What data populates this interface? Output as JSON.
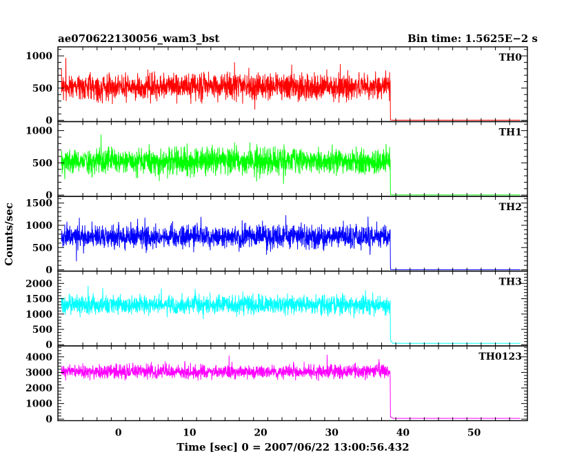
{
  "header": {
    "title": "ae070622130056_wam3_bst",
    "bin_time": "Bin time: 1.5625E−2 s"
  },
  "chart_data": {
    "type": "line",
    "xlabel": "Time [sec] 0 = 2007/06/22 13:00:56.432",
    "ylabel": "Counts/sec",
    "xlim": [
      -8.5,
      57.5
    ],
    "x_ticks": [
      0,
      10,
      20,
      30,
      40,
      50
    ],
    "x_tick_labels": [
      "0",
      "10",
      "20",
      "30",
      "40",
      "50"
    ],
    "burst_window": [
      -8,
      38.2
    ],
    "data_end": 56.5,
    "panels": [
      {
        "name": "TH0",
        "color": "#ff0000",
        "ylim": [
          -20,
          1140
        ],
        "y_ticks": [
          0,
          500,
          1000
        ],
        "y_tick_labels": [
          "0",
          "500",
          "1000"
        ],
        "level_mean": 520,
        "noise": 260,
        "post_level": 2
      },
      {
        "name": "TH1",
        "color": "#00ff00",
        "ylim": [
          -20,
          1140
        ],
        "y_ticks": [
          0,
          500,
          1000
        ],
        "y_tick_labels": [
          "0",
          "500",
          "1000"
        ],
        "level_mean": 520,
        "noise": 260,
        "post_level": 2
      },
      {
        "name": "TH2",
        "color": "#0000ff",
        "ylim": [
          -30,
          1650
        ],
        "y_ticks": [
          0,
          500,
          1000,
          1500
        ],
        "y_tick_labels": [
          "0",
          "500",
          "1000",
          "1500"
        ],
        "level_mean": 750,
        "noise": 330,
        "post_level": 3
      },
      {
        "name": "TH3",
        "color": "#00ffff",
        "ylim": [
          -40,
          2400
        ],
        "y_ticks": [
          0,
          500,
          1000,
          1500,
          2000
        ],
        "y_tick_labels": [
          "0",
          "500",
          "1000",
          "1500",
          "2000"
        ],
        "level_mean": 1300,
        "noise": 400,
        "post_level": 45
      },
      {
        "name": "TH0123",
        "color": "#ff00ff",
        "ylim": [
          -100,
          4700
        ],
        "y_ticks": [
          0,
          1000,
          2000,
          3000,
          4000
        ],
        "y_tick_labels": [
          "0",
          "1000",
          "2000",
          "3000",
          "4000"
        ],
        "level_mean": 3050,
        "noise": 560,
        "post_level": 50
      }
    ]
  }
}
